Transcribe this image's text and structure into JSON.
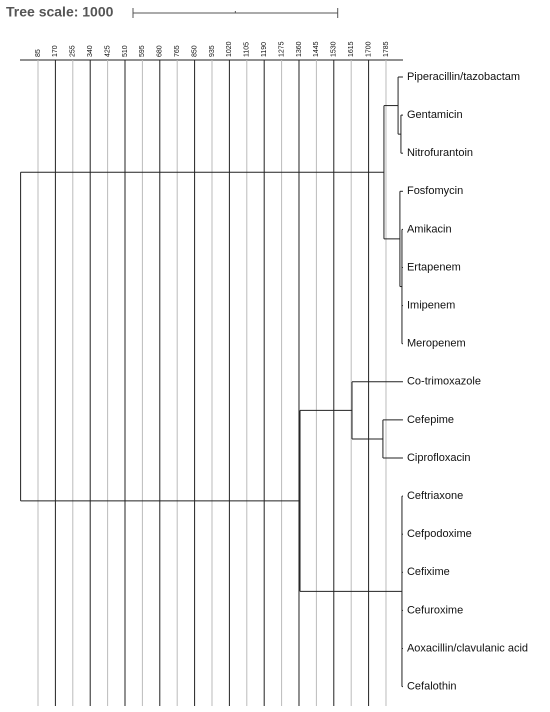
{
  "title": "Tree scale: 1000",
  "scale_bar_length": 1000,
  "axis_ticks": [
    85,
    170,
    255,
    340,
    425,
    510,
    595,
    680,
    765,
    850,
    935,
    1020,
    1105,
    1190,
    1275,
    1360,
    1445,
    1530,
    1615,
    1700,
    1785
  ],
  "tree": {
    "depth": 0,
    "children": [
      {
        "depth": 1775,
        "children": [
          {
            "depth": 1844,
            "children": [
              {
                "label": "Piperacillin/tazobactam",
                "depth": 1868
              },
              {
                "depth": 1858,
                "children": [
                  {
                    "label": "Gentamicin",
                    "depth": 1868
                  },
                  {
                    "label": "Nitrofurantoin",
                    "depth": 1868
                  }
                ]
              }
            ]
          },
          {
            "depth": 1853,
            "children": [
              {
                "label": "Fosfomycin",
                "depth": 1868
              },
              {
                "depth": 1863,
                "children": [
                  {
                    "label": "Amikacin",
                    "depth": 1868
                  },
                  {
                    "label": "Ertapenem",
                    "depth": 1868
                  },
                  {
                    "label": "Imipenem",
                    "depth": 1868
                  },
                  {
                    "label": "Meropenem",
                    "depth": 1868
                  }
                ]
              }
            ]
          }
        ]
      },
      {
        "depth": 1365,
        "children": [
          {
            "depth": 1619,
            "children": [
              {
                "label": "Co-trimoxazole",
                "depth": 1868
              },
              {
                "depth": 1770,
                "children": [
                  {
                    "label": "Cefepime",
                    "depth": 1868
                  },
                  {
                    "label": "Ciprofloxacin",
                    "depth": 1868
                  }
                ]
              }
            ]
          },
          {
            "depth": 1863,
            "children": [
              {
                "label": "Ceftriaxone",
                "depth": 1868
              },
              {
                "label": "Cefpodoxime",
                "depth": 1868
              },
              {
                "label": "Cefixime",
                "depth": 1868
              },
              {
                "label": "Cefuroxime",
                "depth": 1868
              },
              {
                "label": "Aoxacillin/clavulanic acid",
                "depth": 1868
              },
              {
                "label": "Cefalothin",
                "depth": 1868
              }
            ]
          }
        ]
      }
    ]
  }
}
